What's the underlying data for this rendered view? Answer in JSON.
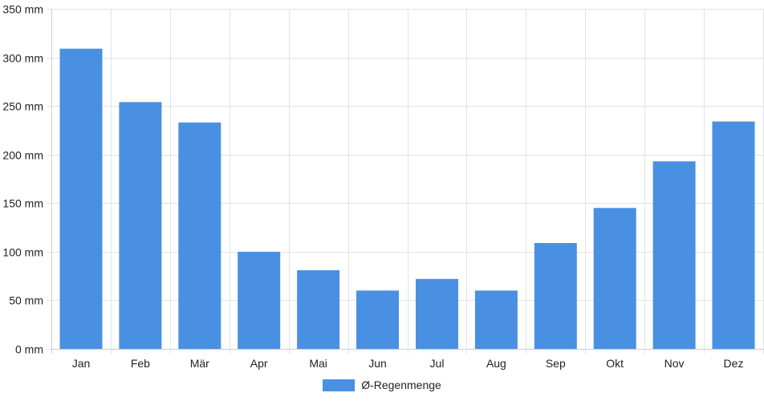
{
  "chart_data": {
    "type": "bar",
    "categories": [
      "Jan",
      "Feb",
      "Mär",
      "Apr",
      "Mai",
      "Jun",
      "Jul",
      "Aug",
      "Sep",
      "Okt",
      "Nov",
      "Dez"
    ],
    "series": [
      {
        "name": "Ø-Regenmenge",
        "values": [
          309,
          254,
          233,
          100,
          81,
          60,
          72,
          60,
          109,
          145,
          193,
          234
        ],
        "color": "#4a90e2"
      }
    ],
    "y_ticks": [
      "0 mm",
      "50 mm",
      "100 mm",
      "150 mm",
      "200 mm",
      "250 mm",
      "300 mm",
      "350 mm"
    ],
    "ylim": [
      0,
      350
    ],
    "y_step": 50,
    "grid": true,
    "legend_position": "bottom",
    "grid_color": "#e3e3e3",
    "axis_color": "#cccccc"
  }
}
